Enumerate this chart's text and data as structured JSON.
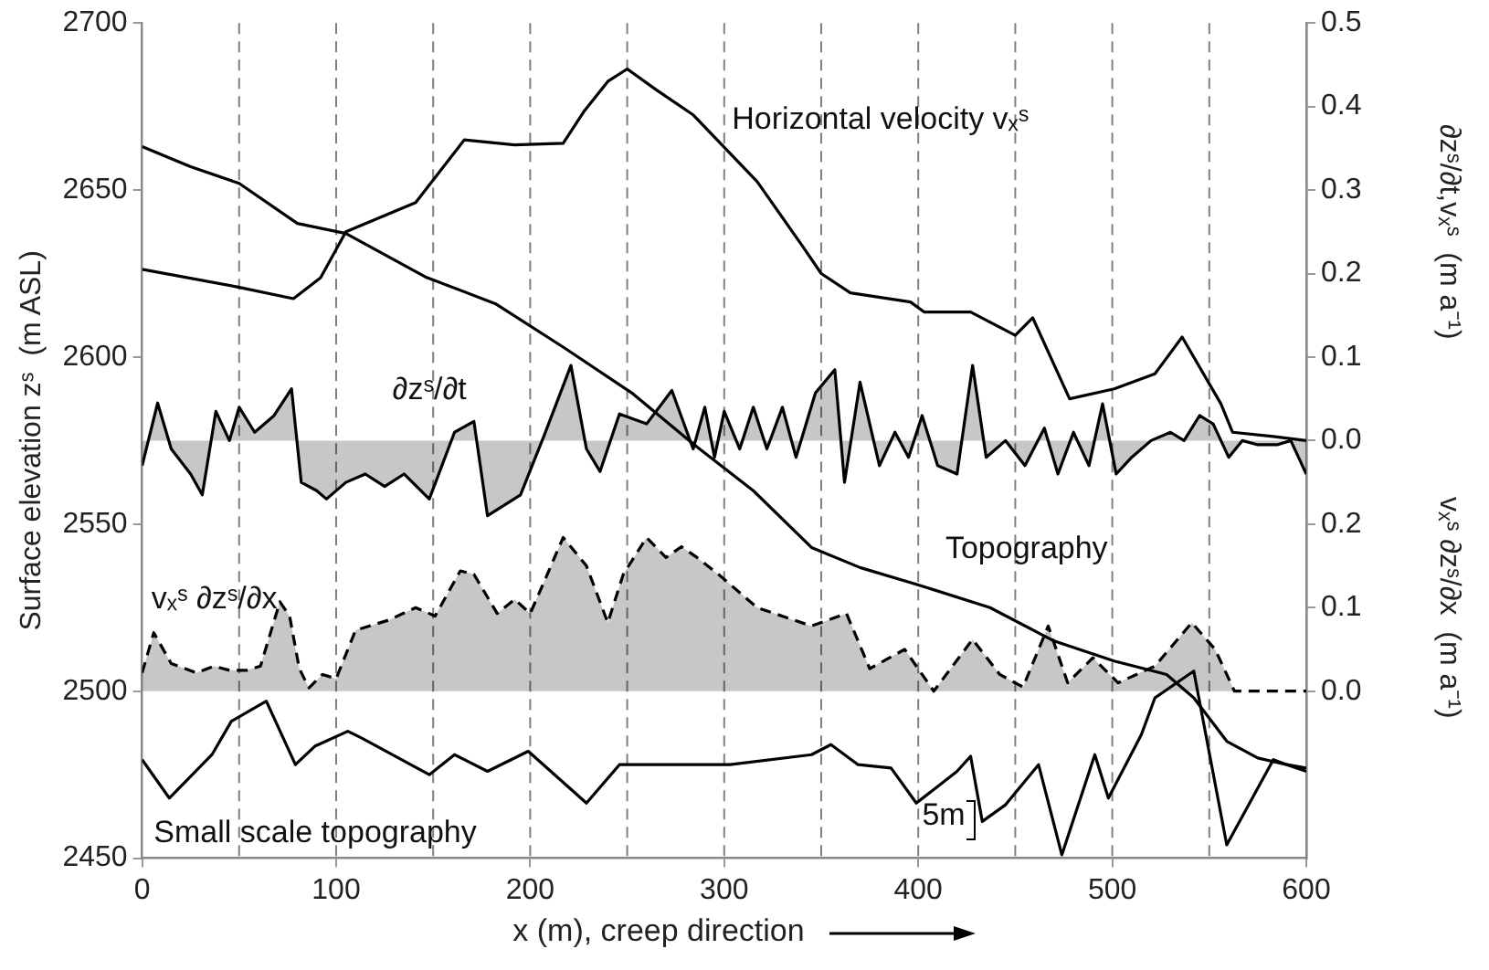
{
  "chart_data": {
    "type": "line",
    "xlabel": "x (m), creep direction",
    "ylabel": "Surface elevation zˢ  (m ASL)",
    "y2label": "∂zˢ/∂t,vₓˢ  (m a⁻¹)",
    "y3label": "vₓˢ ∂zˢ/∂x  (m a⁻¹)",
    "xlim": [
      0,
      600
    ],
    "xticks": [
      0,
      100,
      200,
      300,
      400,
      500,
      600
    ],
    "ylim": [
      2450,
      2700
    ],
    "yticks": [
      2450,
      2500,
      2550,
      2600,
      2650,
      2700
    ],
    "y2lim": [
      -0.5,
      0.5
    ],
    "y2ticks": [
      {
        "value": 0,
        "label": "0.0"
      },
      {
        "value": 0.1,
        "label": "0.1"
      },
      {
        "value": 0.2,
        "label": "0.2"
      },
      {
        "value": 0.3,
        "label": "0.3"
      },
      {
        "value": 0.4,
        "label": "0.4"
      },
      {
        "value": 0.5,
        "label": "0.5"
      }
    ],
    "y3lim": [
      -0.2,
      0.8
    ],
    "y3ticks": [
      {
        "value": 0,
        "label": "0.0"
      },
      {
        "value": 0.1,
        "label": "0.1"
      },
      {
        "value": 0.2,
        "label": "0.2"
      }
    ],
    "grid": false,
    "legend": false,
    "series": [
      {
        "type": "line",
        "color": "#000000",
        "axis": "y",
        "x": [
          0,
          25,
          50,
          80,
          105,
          146,
          182,
          217,
          253,
          284,
          315,
          345,
          370,
          399,
          437,
          470,
          501,
          528,
          542,
          559,
          575,
          590,
          600
        ],
        "values": [
          2663,
          2657,
          2652,
          2640,
          2637,
          2624,
          2616,
          2603,
          2589,
          2574,
          2560,
          2543,
          2537,
          2532,
          2525,
          2515,
          2509,
          2505,
          2498,
          2485,
          2480,
          2478,
          2477
        ]
      },
      {
        "type": "line",
        "color": "#000000",
        "axis": "y2",
        "x": [
          0,
          49,
          78,
          92,
          105,
          141,
          166,
          192,
          217,
          228,
          240,
          250,
          265,
          284,
          317,
          340,
          350,
          365,
          396,
          403,
          427,
          450,
          459,
          478,
          501,
          522,
          536,
          556,
          562,
          583,
          600
        ],
        "values": [
          0.205,
          0.184,
          0.17,
          0.195,
          0.25,
          0.285,
          0.36,
          0.354,
          0.356,
          0.395,
          0.43,
          0.445,
          0.42,
          0.39,
          0.31,
          0.234,
          0.2,
          0.177,
          0.166,
          0.154,
          0.154,
          0.126,
          0.147,
          0.05,
          0.062,
          0.08,
          0.124,
          0.044,
          0.01,
          0.005,
          0.0
        ]
      },
      {
        "type": "area",
        "color": "#000000",
        "axis": "y2",
        "x": [
          0,
          8,
          15,
          25,
          31,
          38,
          45,
          50,
          58,
          68,
          77,
          82,
          90,
          95,
          105,
          115,
          125,
          135,
          148,
          161,
          171,
          178,
          195,
          207,
          221,
          229,
          236,
          246,
          260,
          273,
          284,
          290,
          295,
          300,
          308,
          315,
          322,
          330,
          337,
          347,
          357,
          362,
          370,
          380,
          388,
          395,
          402,
          410,
          420,
          428,
          435,
          445,
          455,
          465,
          472,
          480,
          488,
          495,
          502,
          510,
          520,
          530,
          537,
          545,
          552,
          560,
          567,
          575,
          585,
          592,
          598,
          600
        ],
        "values": [
          -0.03,
          0.045,
          -0.01,
          -0.04,
          -0.065,
          0.035,
          0.0,
          0.04,
          0.01,
          0.03,
          0.062,
          -0.05,
          -0.06,
          -0.07,
          -0.05,
          -0.04,
          -0.055,
          -0.04,
          -0.07,
          0.01,
          0.023,
          -0.09,
          -0.065,
          0.005,
          0.09,
          -0.01,
          -0.037,
          0.032,
          0.02,
          0.06,
          -0.01,
          0.04,
          -0.02,
          0.035,
          -0.01,
          0.04,
          -0.01,
          0.04,
          -0.02,
          0.057,
          0.085,
          -0.05,
          0.07,
          -0.03,
          0.01,
          -0.02,
          0.03,
          -0.03,
          -0.04,
          0.09,
          -0.02,
          0.0,
          -0.03,
          0.015,
          -0.04,
          0.01,
          -0.03,
          0.044,
          -0.04,
          -0.02,
          0.0,
          0.01,
          0.0,
          0.03,
          0.02,
          -0.02,
          0.0,
          -0.005,
          -0.005,
          0.0,
          -0.03,
          -0.04
        ]
      },
      {
        "type": "area",
        "color": "#000000",
        "axis": "y3",
        "line_style": "dashed",
        "x": [
          0,
          6,
          15,
          28,
          37,
          45,
          54,
          61,
          71,
          76,
          81,
          86,
          93,
          100,
          110,
          127,
          141,
          151,
          164,
          171,
          183,
          192,
          200,
          207,
          217,
          229,
          240,
          248,
          260,
          270,
          278,
          286,
          297,
          317,
          345,
          363,
          375,
          393,
          408,
          428,
          442,
          454,
          467,
          477,
          490,
          503,
          522,
          541,
          553,
          563,
          587,
          600
        ],
        "values": [
          0.022,
          0.07,
          0.033,
          0.022,
          0.03,
          0.025,
          0.025,
          0.03,
          0.107,
          0.09,
          0.027,
          0.004,
          0.02,
          0.015,
          0.073,
          0.085,
          0.1,
          0.09,
          0.144,
          0.14,
          0.093,
          0.11,
          0.093,
          0.13,
          0.184,
          0.15,
          0.082,
          0.14,
          0.184,
          0.16,
          0.173,
          0.16,
          0.14,
          0.1,
          0.078,
          0.093,
          0.027,
          0.05,
          0.0,
          0.062,
          0.02,
          0.005,
          0.078,
          0.01,
          0.04,
          0.01,
          0.03,
          0.082,
          0.05,
          0.0,
          0.0,
          0.0
        ]
      },
      {
        "type": "line",
        "color": "#000000",
        "axis": "y",
        "x": [
          0,
          14,
          36,
          46,
          64,
          79,
          89,
          106,
          113,
          148,
          161,
          178,
          199,
          229,
          246,
          303,
          345,
          355,
          369,
          386,
          399,
          420,
          427,
          433,
          445,
          462,
          474,
          491,
          498,
          515,
          522,
          542,
          559,
          583,
          590,
          600
        ],
        "values": [
          2479.5,
          2468,
          2481,
          2491,
          2497,
          2478,
          2483.5,
          2488,
          2486,
          2475,
          2481,
          2476,
          2482,
          2466.5,
          2478,
          2478,
          2481,
          2484,
          2478,
          2477,
          2466.5,
          2476,
          2480.5,
          2461,
          2466,
          2478,
          2451,
          2481,
          2468,
          2487,
          2498,
          2506,
          2454,
          2479.5,
          2478,
          2476
        ]
      }
    ],
    "ref_lines": [
      {
        "axis": "x",
        "value": 50,
        "color": "#808080",
        "line_style": "dashed"
      },
      {
        "axis": "x",
        "value": 100,
        "color": "#808080",
        "line_style": "dashed"
      },
      {
        "axis": "x",
        "value": 150,
        "color": "#808080",
        "line_style": "dashed"
      },
      {
        "axis": "x",
        "value": 200,
        "color": "#808080",
        "line_style": "dashed"
      },
      {
        "axis": "x",
        "value": 250,
        "color": "#808080",
        "line_style": "dashed"
      },
      {
        "axis": "x",
        "value": 300,
        "color": "#808080",
        "line_style": "dashed"
      },
      {
        "axis": "x",
        "value": 350,
        "color": "#808080",
        "line_style": "dashed"
      },
      {
        "axis": "x",
        "value": 400,
        "color": "#808080",
        "line_style": "dashed"
      },
      {
        "axis": "x",
        "value": 450,
        "color": "#808080",
        "line_style": "dashed"
      },
      {
        "axis": "x",
        "value": 500,
        "color": "#808080",
        "line_style": "dashed"
      },
      {
        "axis": "x",
        "value": 550,
        "color": "#808080",
        "line_style": "dashed"
      }
    ],
    "annotations": [
      {
        "text": "Horizontal velocity vₓˢ",
        "x": 304,
        "y": 2671
      },
      "∂zˢ/∂t",
      "vₓˢ ∂zˢ/∂x",
      "Topography",
      "Small scale topography",
      "5m"
    ]
  }
}
